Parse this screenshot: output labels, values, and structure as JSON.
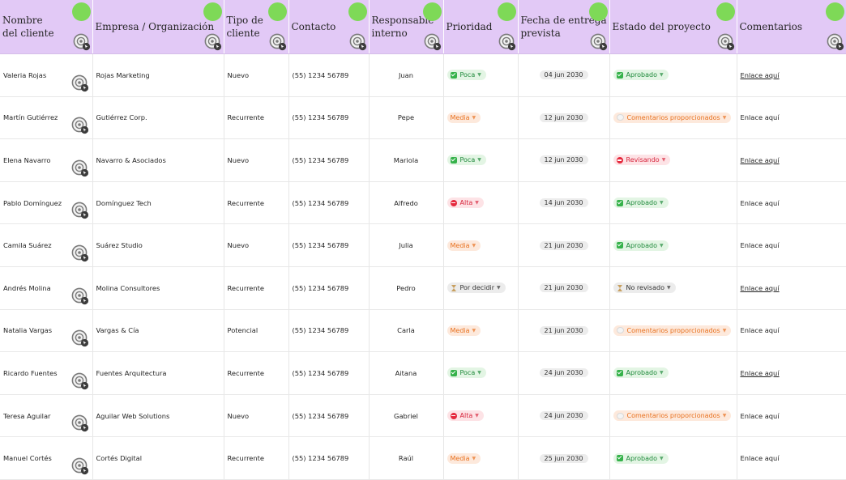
{
  "headers": [
    {
      "label": "Nombre\ndel cliente"
    },
    {
      "label": "Empresa / Organización"
    },
    {
      "label": "Tipo de\ncliente"
    },
    {
      "label": "Contacto"
    },
    {
      "label": "Responsable\ninterno"
    },
    {
      "label": "Prioridad"
    },
    {
      "label": "Fecha de entrega\nprevista"
    },
    {
      "label": "Estado del proyecto"
    },
    {
      "label": "Comentarios"
    }
  ],
  "colors": {
    "header_bg": "#e2c9f6",
    "dot_green": "#7ed957",
    "status_green": "#1f8a3b",
    "status_orange": "#e8711f",
    "status_red": "#d7263d"
  },
  "pill_styles": {
    "Poca": {
      "cls": "p-green",
      "icon": "check"
    },
    "Media": {
      "cls": "p-orange",
      "icon": ""
    },
    "Alta": {
      "cls": "p-red",
      "icon": "stop"
    },
    "Por decidir": {
      "cls": "p-gray",
      "icon": "hour"
    },
    "Aprobado": {
      "cls": "p-green",
      "icon": "check"
    },
    "Comentarios proporcionados": {
      "cls": "p-orange",
      "icon": "bubble"
    },
    "Revisando": {
      "cls": "p-red",
      "icon": "stop"
    },
    "No revisado": {
      "cls": "p-gray",
      "icon": "hour"
    }
  },
  "rows": [
    {
      "name": "Valeria Rojas",
      "company": "Rojas Marketing",
      "type": "Nuevo",
      "contact": "(55) 1234 56789",
      "owner": "Juan",
      "priority": "Poca",
      "date": "04 jun 2030",
      "status": "Aprobado",
      "comment": "Enlace aquí",
      "comment_link": true
    },
    {
      "name": "Martín Gutiérrez",
      "company": "Gutiérrez Corp.",
      "type": "Recurrente",
      "contact": "(55) 1234 56789",
      "owner": "Pepe",
      "priority": "Media",
      "date": "12 jun 2030",
      "status": "Comentarios proporcionados",
      "comment": "Enlace aquí",
      "comment_link": false
    },
    {
      "name": "Elena Navarro",
      "company": "Navarro & Asociados",
      "type": "Nuevo",
      "contact": "(55) 1234 56789",
      "owner": "Mariola",
      "priority": "Poca",
      "date": "12 jun 2030",
      "status": "Revisando",
      "comment": "Enlace aquí",
      "comment_link": true
    },
    {
      "name": "Pablo Domínguez",
      "company": "Domínguez Tech",
      "type": "Recurrente",
      "contact": "(55) 1234 56789",
      "owner": "Alfredo",
      "priority": "Alta",
      "date": "14 jun 2030",
      "status": "Aprobado",
      "comment": "Enlace aquí",
      "comment_link": false
    },
    {
      "name": "Camila Suárez",
      "company": "Suárez Studio",
      "type": "Nuevo",
      "contact": "(55) 1234 56789",
      "owner": "Julia",
      "priority": "Media",
      "date": "21 jun 2030",
      "status": "Aprobado",
      "comment": "Enlace aquí",
      "comment_link": false
    },
    {
      "name": "Andrés Molina",
      "company": "Molina Consultores",
      "type": "Recurrente",
      "contact": "(55) 1234 56789",
      "owner": "Pedro",
      "priority": "Por decidir",
      "date": "21 jun 2030",
      "status": "No revisado",
      "comment": "Enlace aquí",
      "comment_link": true
    },
    {
      "name": "Natalia Vargas",
      "company": "Vargas & Cía",
      "type": "Potencial",
      "contact": "(55) 1234 56789",
      "owner": "Carla",
      "priority": "Media",
      "date": "21 jun 2030",
      "status": "Comentarios proporcionados",
      "comment": "Enlace aquí",
      "comment_link": false
    },
    {
      "name": "Ricardo Fuentes",
      "company": "Fuentes Arquitectura",
      "type": "Recurrente",
      "contact": "(55) 1234 56789",
      "owner": "Aitana",
      "priority": "Poca",
      "date": "24 jun 2030",
      "status": "Aprobado",
      "comment": "Enlace aquí",
      "comment_link": true
    },
    {
      "name": "Teresa Aguilar",
      "company": "Aguilar Web Solutions",
      "type": "Nuevo",
      "contact": "(55) 1234 56789",
      "owner": "Gabriel",
      "priority": "Alta",
      "date": "24 jun 2030",
      "status": "Comentarios proporcionados",
      "comment": "Enlace aquí",
      "comment_link": false
    },
    {
      "name": "Manuel Cortés",
      "company": "Cortés Digital",
      "type": "Recurrente",
      "contact": "(55) 1234 56789",
      "owner": "Raúl",
      "priority": "Media",
      "date": "25 jun 2030",
      "status": "Aprobado",
      "comment": "Enlace aquí",
      "comment_link": false
    }
  ]
}
